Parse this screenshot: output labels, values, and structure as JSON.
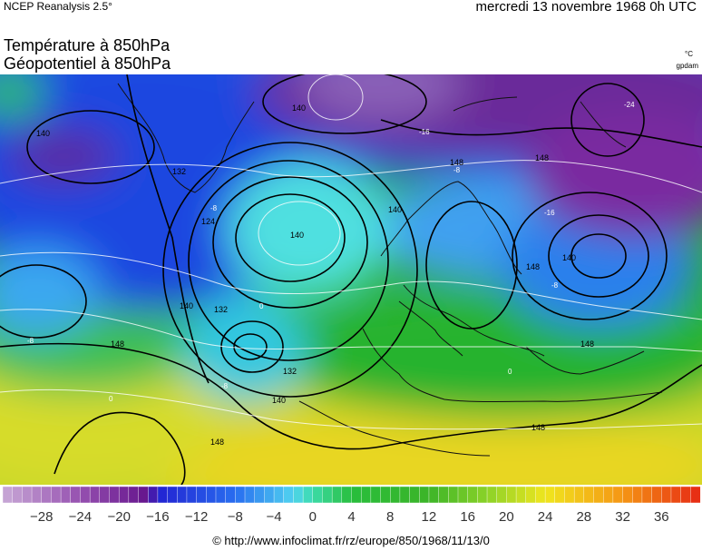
{
  "header": {
    "source": "NCEP Reanalysis 2.5°",
    "date": "mercredi 13 novembre 1968 0h UTC"
  },
  "titles": {
    "line1": "Température à 850hPa",
    "line2": "Géopotentiel à 850hPa"
  },
  "units": {
    "temperature": "°C",
    "geopotential": "gpdam"
  },
  "colorscale": {
    "min": -32,
    "max": 40,
    "step": 1,
    "tick_labels": [
      "−28",
      "−24",
      "−20",
      "−16",
      "−12",
      "−8",
      "−4",
      "0",
      "4",
      "8",
      "12",
      "16",
      "20",
      "24",
      "28",
      "32",
      "36"
    ],
    "tick_values": [
      -28,
      -24,
      -20,
      -16,
      -12,
      -8,
      -4,
      0,
      4,
      8,
      12,
      16,
      20,
      24,
      28,
      32,
      36
    ]
  },
  "contour_labels": {
    "geopotential": [
      "140",
      "140",
      "132",
      "124",
      "148",
      "140",
      "132",
      "148",
      "140",
      "148",
      "148",
      "140",
      "148",
      "132",
      "148",
      "140",
      "140",
      "148"
    ],
    "temperature": [
      "-16",
      "-8",
      "-8",
      "-8",
      "-16",
      "-8",
      "-24",
      "0",
      "-8",
      "0",
      "0"
    ]
  },
  "colors": {
    "cold_extreme": "#6a1a88",
    "freezing": "#1a4cd8",
    "zero": "#3ec0e8",
    "mild": "#27b32d",
    "warm": "#e8e21e",
    "hot": "#e8321a"
  },
  "footer": "© http://www.infoclimat.fr/rz/europe/850/1968/11/13/0"
}
